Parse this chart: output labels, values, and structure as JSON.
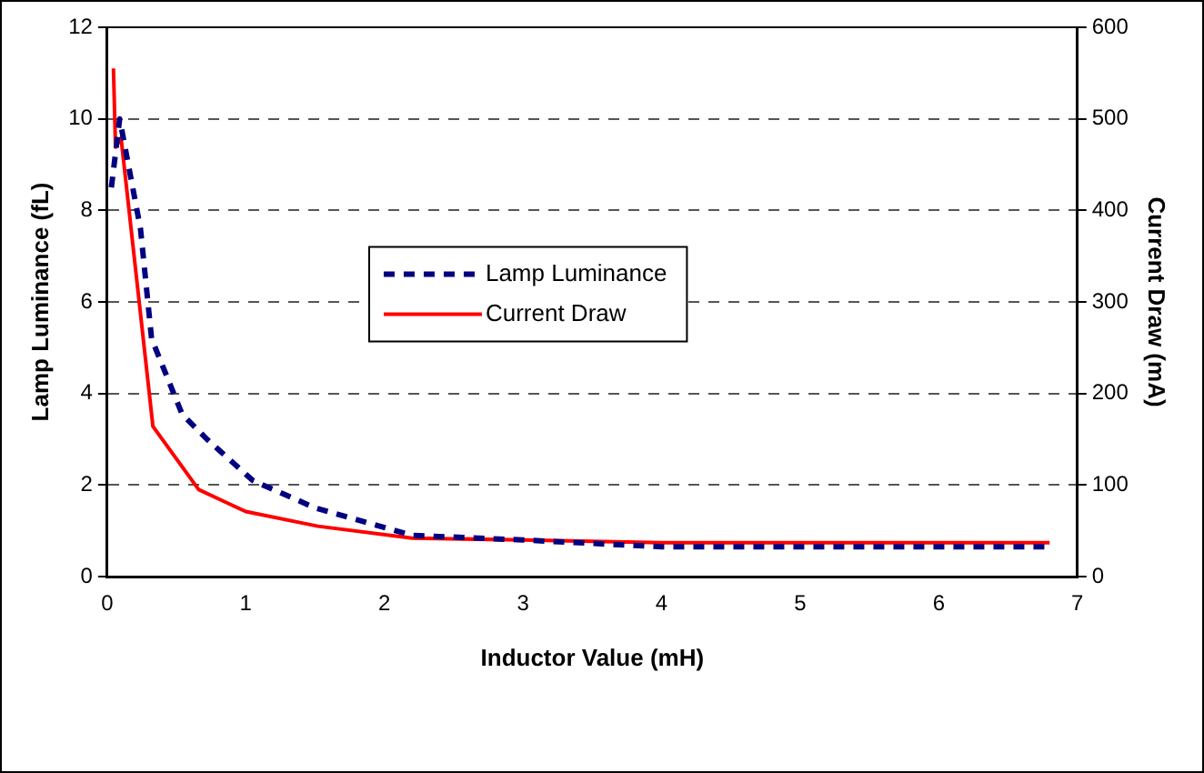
{
  "chart_data": {
    "type": "line",
    "xlabel": "Inductor Value (mH)",
    "ylabel": "Lamp Luminance (fL)",
    "y2label": "Current Draw (mA)",
    "xlim": [
      0,
      7
    ],
    "xticks": [
      0,
      1,
      2,
      3,
      4,
      5,
      6,
      7
    ],
    "ylim": [
      0,
      12
    ],
    "yticks": [
      0,
      2,
      4,
      6,
      8,
      10,
      12
    ],
    "y2lim": [
      0,
      600
    ],
    "y2ticks": [
      0,
      100,
      200,
      300,
      400,
      500,
      600
    ],
    "grid": "y",
    "legend": "center",
    "marker": "none",
    "series": [
      {
        "name": "Lamp Luminance",
        "color": "#000080",
        "line_style": "dashed",
        "x": [
          0.03,
          0.09,
          0.24,
          0.32,
          0.54,
          0.72,
          1.05,
          1.5,
          2.2,
          3,
          4,
          5,
          6,
          6.8
        ],
        "values": [
          8.5,
          10,
          7.6,
          5.2,
          3.55,
          3,
          2.1,
          1.5,
          0.9,
          0.8,
          0.65,
          0.65,
          0.65,
          0.65
        ]
      },
      {
        "name": "Current Draw",
        "color": "#ff0000",
        "line_style": "solid",
        "axis": "y2",
        "x": [
          0.045,
          0.06,
          0.1,
          0.33,
          0.66,
          1,
          1.52,
          2.2,
          3,
          4,
          5,
          6,
          6.8
        ],
        "values": [
          555,
          469,
          479,
          164,
          95,
          71,
          55,
          42,
          40,
          37,
          37,
          37,
          37
        ]
      }
    ]
  }
}
